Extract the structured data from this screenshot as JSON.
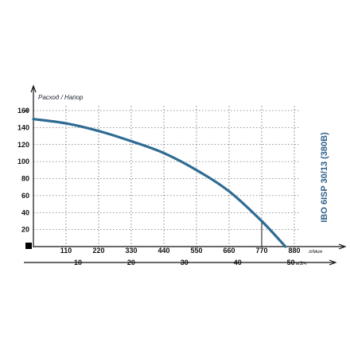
{
  "chart_data": {
    "type": "line",
    "title": "IBO 6ISP 30/13 (380B)",
    "ylabel": "Расход / Напор",
    "y_unit": "м",
    "ylim": [
      0,
      160
    ],
    "yticks": [
      20,
      40,
      60,
      80,
      100,
      120,
      140,
      160
    ],
    "x_primary": {
      "unit": "л/мин",
      "lim": [
        0,
        880
      ],
      "ticks": [
        110,
        220,
        330,
        440,
        550,
        660,
        770,
        880
      ]
    },
    "x_secondary": {
      "unit": "м3/ч",
      "ticks": [
        10,
        20,
        30,
        40,
        50
      ]
    },
    "grid": true,
    "series": [
      {
        "color": "#2e6b93",
        "x": [
          0,
          110,
          220,
          330,
          440,
          550,
          660,
          770,
          850
        ],
        "y": [
          150,
          145,
          136,
          124,
          110,
          90,
          65,
          30,
          0
        ]
      }
    ],
    "marker": {
      "x": 770,
      "y": 30
    }
  }
}
